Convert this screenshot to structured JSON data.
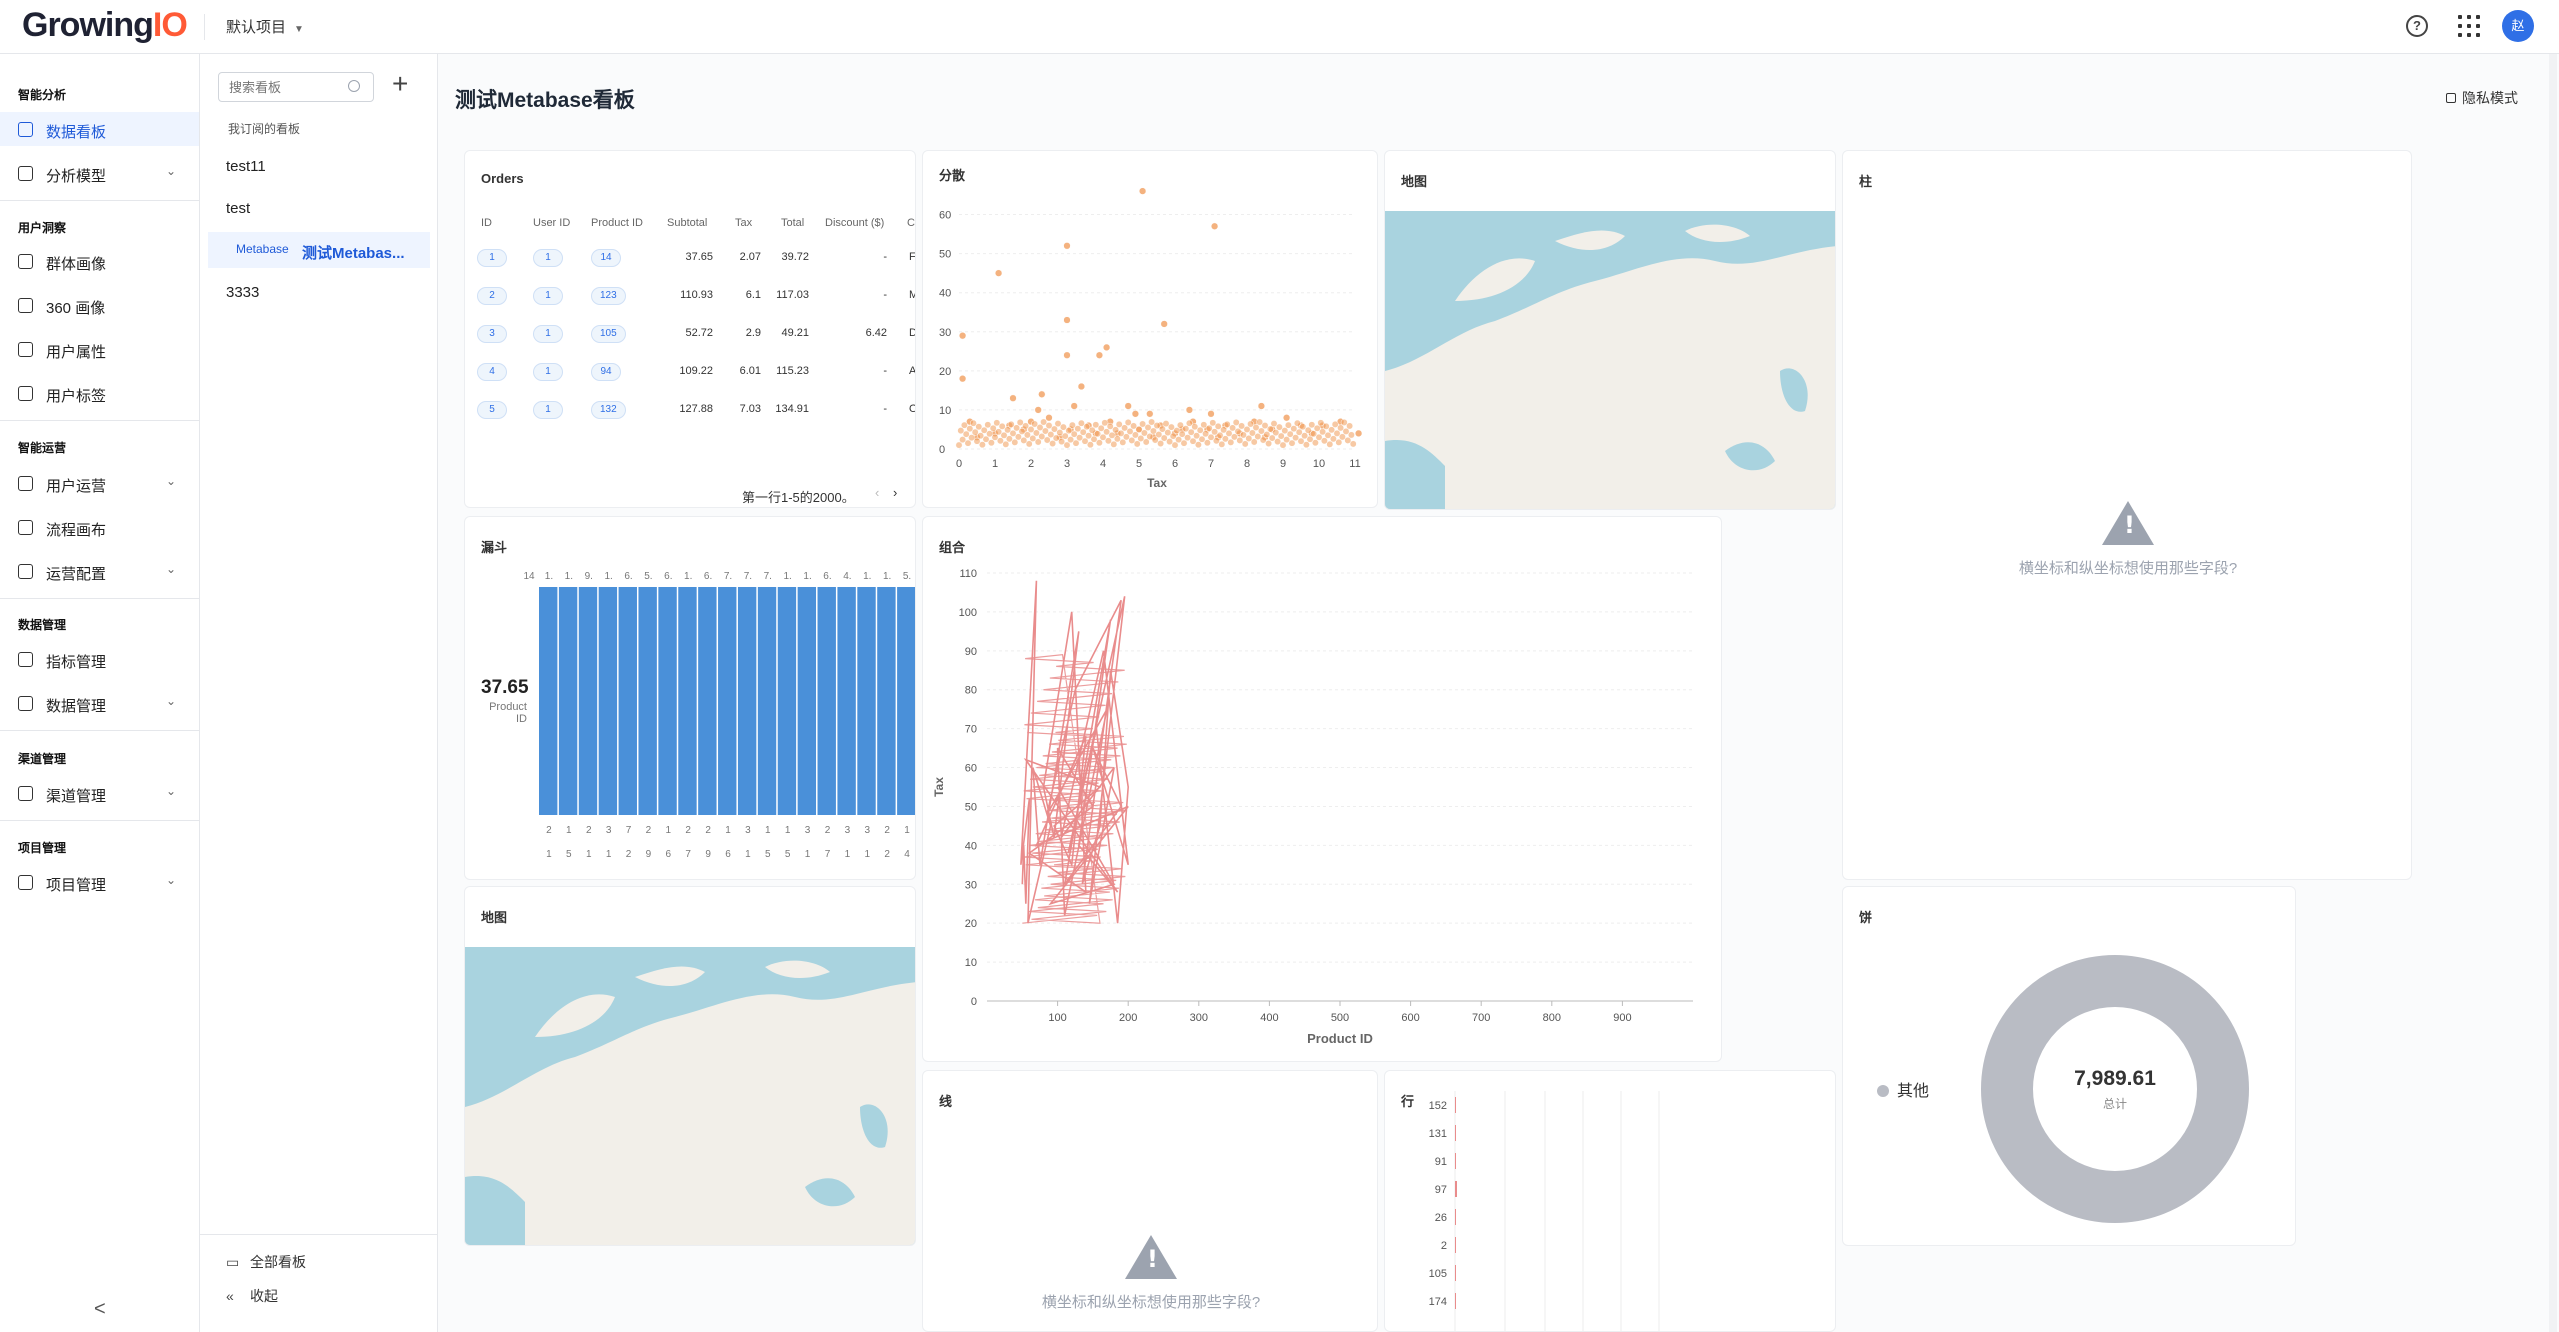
{
  "header": {
    "logo_main": "Growing",
    "logo_io": "IO",
    "project": "默认项目",
    "help": "?",
    "avatar": "赵"
  },
  "sidebar": {
    "sections": [
      {
        "label": "智能分析",
        "items": [
          {
            "label": "数据看板",
            "icon": "dashboard-icon",
            "active": true
          },
          {
            "label": "分析模型",
            "icon": "chart-icon",
            "chevron": true
          }
        ]
      },
      {
        "label": "用户洞察",
        "items": [
          {
            "label": "群体画像",
            "icon": "group-icon"
          },
          {
            "label": "360 画像",
            "icon": "profile-icon"
          },
          {
            "label": "用户属性",
            "icon": "user-icon"
          },
          {
            "label": "用户标签",
            "icon": "tag-icon"
          }
        ]
      },
      {
        "label": "智能运营",
        "items": [
          {
            "label": "用户运营",
            "icon": "megaphone-icon",
            "chevron": true
          },
          {
            "label": "流程画布",
            "icon": "flow-icon"
          },
          {
            "label": "运营配置",
            "icon": "config-icon",
            "chevron": true
          }
        ]
      },
      {
        "label": "数据管理",
        "items": [
          {
            "label": "指标管理",
            "icon": "metric-icon"
          },
          {
            "label": "数据管理",
            "icon": "database-icon",
            "chevron": true
          }
        ]
      },
      {
        "label": "渠道管理",
        "items": [
          {
            "label": "渠道管理",
            "icon": "channel-icon",
            "chevron": true
          }
        ]
      },
      {
        "label": "项目管理",
        "items": [
          {
            "label": "项目管理",
            "icon": "gear-icon",
            "chevron": true
          }
        ]
      }
    ],
    "collapse": "<"
  },
  "dashboards": {
    "search_placeholder": "搜索看板",
    "subscribed": "我订阅的看板",
    "items": [
      {
        "label": "test11"
      },
      {
        "label": "test"
      },
      {
        "tag": "Metabase",
        "label": "测试Metabas..."
      },
      {
        "label": "3333"
      }
    ],
    "all": "全部看板",
    "collapse": "收起"
  },
  "page": {
    "title": "测试Metabase看板",
    "privacy": "隐私模式"
  },
  "cards": {
    "orders": {
      "title": "Orders",
      "headers": [
        "ID",
        "User ID",
        "Product ID",
        "Subtotal",
        "Tax",
        "Total",
        "Discount ($)",
        "C"
      ],
      "rows": [
        {
          "id": "1",
          "user": "1",
          "product": "14",
          "subtotal": "37.65",
          "tax": "2.07",
          "total": "39.72",
          "discount": "-",
          "c": "Fr"
        },
        {
          "id": "2",
          "user": "1",
          "product": "123",
          "subtotal": "110.93",
          "tax": "6.1",
          "total": "117.03",
          "discount": "-",
          "c": "M"
        },
        {
          "id": "3",
          "user": "1",
          "product": "105",
          "subtotal": "52.72",
          "tax": "2.9",
          "total": "49.21",
          "discount": "6.42",
          "c": "D"
        },
        {
          "id": "4",
          "user": "1",
          "product": "94",
          "subtotal": "109.22",
          "tax": "6.01",
          "total": "115.23",
          "discount": "-",
          "c": "A"
        },
        {
          "id": "5",
          "user": "1",
          "product": "132",
          "subtotal": "127.88",
          "tax": "7.03",
          "total": "134.91",
          "discount": "-",
          "c": "O"
        }
      ],
      "pager": "第一行1-5的2000。",
      "prev": "‹",
      "next": "›"
    },
    "scatter_title": "分散",
    "map1_title": "地图",
    "pillar_title": "柱",
    "pillar_warning": "横坐标和纵坐标想使用那些字段?",
    "funnel": {
      "title": "漏斗",
      "value": "37.65",
      "label_line1": "Product",
      "label_line2": "ID",
      "top_ticks": [
        "14",
        "1.",
        "1.",
        "9.",
        "1.",
        "6.",
        "5.",
        "6.",
        "1.",
        "6.",
        "7.",
        "7.",
        "7.",
        "1.",
        "1.",
        "6.",
        "4.",
        "1.",
        "1.",
        "5."
      ],
      "bottom_row1": [
        "2",
        "1",
        "2",
        "3",
        "7",
        "2",
        "1",
        "2",
        "2",
        "1",
        "3",
        "1",
        "1",
        "3",
        "2",
        "3",
        "3",
        "2",
        "1"
      ],
      "bottom_row2": [
        "1",
        "5",
        "1",
        "1",
        "2",
        "9",
        "6",
        "7",
        "9",
        "6",
        "1",
        "5",
        "5",
        "1",
        "7",
        "1",
        "1",
        "2",
        "4"
      ]
    },
    "combo_title": "组合",
    "map2_title": "地图",
    "line_title": "线",
    "line_warning": "横坐标和纵坐标想使用那些字段?",
    "row_title": "行",
    "pie": {
      "title": "饼",
      "legend": "其他",
      "total": "7,989.61",
      "total_label": "总计"
    }
  },
  "chart_data": [
    {
      "type": "scatter",
      "title": "分散",
      "xlabel": "Tax",
      "ylabel": "",
      "xlim": [
        0,
        11
      ],
      "ylim": [
        0,
        65
      ],
      "x_ticks": [
        "0",
        "1",
        "2",
        "3",
        "4",
        "5",
        "6",
        "7",
        "8",
        "9",
        "10",
        "11"
      ],
      "y_ticks": [
        "0",
        "10",
        "20",
        "30",
        "40",
        "50",
        "60"
      ],
      "color": "#f2a568",
      "points": [
        [
          5.1,
          66
        ],
        [
          3,
          52
        ],
        [
          1.1,
          45
        ],
        [
          7.1,
          57
        ],
        [
          3,
          33
        ],
        [
          5.7,
          32
        ],
        [
          4.1,
          26
        ],
        [
          3.9,
          24
        ],
        [
          3,
          24
        ],
        [
          0.1,
          29
        ],
        [
          0.1,
          18
        ],
        [
          3.4,
          16
        ],
        [
          2.3,
          14
        ],
        [
          1.5,
          13
        ],
        [
          4.7,
          11
        ],
        [
          2.2,
          10
        ],
        [
          3.2,
          11
        ],
        [
          4.9,
          9
        ],
        [
          6.4,
          10
        ],
        [
          5.3,
          9
        ],
        [
          8.4,
          11
        ],
        [
          9.1,
          8
        ],
        [
          10.1,
          6
        ],
        [
          11.1,
          4
        ],
        [
          10.6,
          7
        ],
        [
          7,
          9
        ],
        [
          0.5,
          3
        ],
        [
          1,
          4
        ],
        [
          1.4,
          6
        ],
        [
          2,
          7
        ],
        [
          2.5,
          8
        ],
        [
          3.1,
          5
        ],
        [
          3.6,
          6
        ],
        [
          4.2,
          7
        ],
        [
          4.4,
          4
        ],
        [
          5,
          5
        ],
        [
          5.6,
          6
        ],
        [
          6,
          4
        ],
        [
          6.5,
          7
        ],
        [
          6.9,
          5
        ],
        [
          7.4,
          6
        ],
        [
          7.8,
          4
        ],
        [
          8.2,
          7
        ],
        [
          8.7,
          5
        ],
        [
          9.5,
          6
        ],
        [
          9.8,
          4
        ],
        [
          0.3,
          7
        ],
        [
          1.8,
          5
        ],
        [
          2.8,
          3
        ],
        [
          3.8,
          4
        ],
        [
          5.4,
          3
        ],
        [
          6.2,
          5
        ],
        [
          7.2,
          3
        ],
        [
          8.5,
          3
        ]
      ]
    },
    {
      "type": "line",
      "title": "组合",
      "xlabel": "Product ID",
      "ylabel": "Tax",
      "xlim": [
        0,
        1000
      ],
      "ylim": [
        0,
        110
      ],
      "x_ticks": [
        "100",
        "200",
        "300",
        "400",
        "500",
        "600",
        "700",
        "800",
        "900"
      ],
      "y_ticks": [
        "0",
        "10",
        "20",
        "30",
        "40",
        "50",
        "60",
        "70",
        "80",
        "90",
        "100",
        "110"
      ],
      "color": "#e98c8c",
      "series": [
        {
          "x": [
            50,
            52,
            55,
            60,
            48,
            70,
            58,
            90,
            65,
            75,
            130,
            95,
            80,
            120,
            140,
            60,
            150,
            100,
            110,
            170,
            85,
            125,
            190,
            135,
            160,
            175,
            200,
            185,
            155,
            115,
            195,
            145,
            180,
            105,
            165,
            200,
            150,
            190,
            110,
            175,
            130,
            185,
            55,
            160,
            95,
            120,
            140,
            70,
            200,
            90,
            180,
            100
          ],
          "y": [
            30,
            40,
            25,
            52,
            35,
            108,
            20,
            45,
            60,
            35,
            95,
            42,
            55,
            100,
            28,
            38,
            50,
            65,
            22,
            75,
            48,
            80,
            103,
            30,
            45,
            85,
            55,
            20,
            70,
            38,
            104,
            25,
            60,
            42,
            90,
            35,
            65,
            50,
            30,
            98,
            40,
            28,
            62,
            55,
            45,
            35,
            68,
            40,
            50,
            25,
            30,
            55
          ]
        }
      ]
    },
    {
      "type": "bar",
      "title": "行",
      "orientation": "horizontal",
      "categories": [
        "152",
        "131",
        "91",
        "97",
        "26",
        "2",
        "105",
        "174"
      ],
      "values": [
        0.2,
        0.2,
        0.2,
        1,
        0.2,
        0.2,
        0.1,
        0.3
      ]
    },
    {
      "type": "pie",
      "title": "饼",
      "legend": [
        "其他"
      ],
      "values": [
        7989.61
      ],
      "total": "7,989.61"
    }
  ]
}
